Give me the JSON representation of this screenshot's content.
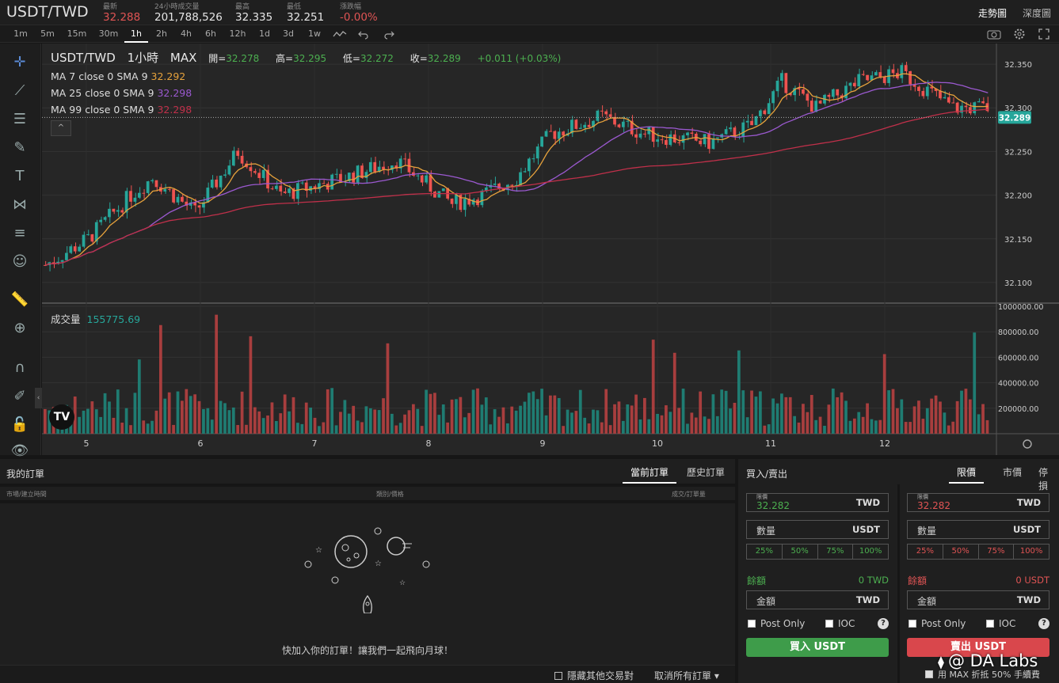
{
  "header": {
    "pair": "USDT/TWD",
    "stats": [
      {
        "label": "最新",
        "value": "32.288",
        "color": "red"
      },
      {
        "label": "24小時成交量",
        "value": "201,788,526",
        "color": ""
      },
      {
        "label": "最高",
        "value": "32.335",
        "color": ""
      },
      {
        "label": "最低",
        "value": "32.251",
        "color": ""
      },
      {
        "label": "漲跌幅",
        "value": "-0.00%",
        "color": "red"
      }
    ],
    "view_tabs": [
      "走勢圖",
      "深度圖"
    ],
    "active_view": "走勢圖"
  },
  "intervals": [
    "1m",
    "5m",
    "15m",
    "30m",
    "1h",
    "2h",
    "4h",
    "6h",
    "12h",
    "1d",
    "3d",
    "1w"
  ],
  "active_interval": "1h",
  "legend": {
    "symbol": "USDT/TWD",
    "interval": "1小時",
    "exchange": "MAX",
    "open_label": "開=",
    "open": "32.278",
    "high_label": "高=",
    "high": "32.295",
    "low_label": "低=",
    "low": "32.272",
    "close_label": "收=",
    "close": "32.289",
    "change": "+0.011 (+0.03%)",
    "ma": [
      {
        "label": "MA 7 close 0 SMA 9",
        "value": "32.292",
        "color": "#e6a23c"
      },
      {
        "label": "MA 25 close 0 SMA 9",
        "value": "32.298",
        "color": "#9b59d0"
      },
      {
        "label": "MA 99 close 0 SMA 9",
        "value": "32.298",
        "color": "#c0304a"
      }
    ],
    "volume_label": "成交量",
    "volume_value": "155775.69"
  },
  "chart_data": {
    "type": "candlestick",
    "price_axis": {
      "ticks": [
        "32.350",
        "32.300",
        "32.250",
        "32.200",
        "32.150",
        "32.100"
      ],
      "range": [
        32.08,
        32.37
      ]
    },
    "volume_axis": {
      "ticks": [
        "1000000.00",
        "800000.00",
        "600000.00",
        "400000.00",
        "200000.00"
      ],
      "range": [
        0,
        1000000
      ]
    },
    "x_ticks": [
      "5",
      "6",
      "7",
      "8",
      "9",
      "10",
      "11",
      "12"
    ],
    "last_price": "32.289",
    "colors": {
      "up": "#26a69a",
      "down": "#ef5350",
      "ma7": "#e6a23c",
      "ma25": "#9b59d0",
      "ma99": "#c0304a"
    }
  },
  "orders": {
    "title": "我的訂單",
    "tabs": [
      "當前訂單",
      "歷史訂單"
    ],
    "columns": [
      "市場/建立時間",
      "類別/價格",
      "成交/訂單量"
    ],
    "empty_text": "快加入你的訂單！讓我們一起飛向月球！",
    "hide_others": "隱藏其他交易對",
    "cancel_all": "取消所有訂單"
  },
  "trade": {
    "title": "買入/賣出",
    "tabs": [
      "限價",
      "市價",
      "停損"
    ],
    "buy": {
      "price_label": "限價",
      "price": "32.282",
      "price_unit": "TWD",
      "qty_label": "數量",
      "qty_unit": "USDT",
      "pcts": [
        "25%",
        "50%",
        "75%",
        "100%"
      ],
      "balance_label": "餘額",
      "balance": "0 TWD",
      "amount_label": "金額",
      "amount_unit": "TWD",
      "post_only": "Post Only",
      "ioc": "IOC",
      "button": "買入 USDT"
    },
    "sell": {
      "price_label": "限價",
      "price": "32.282",
      "price_unit": "TWD",
      "qty_label": "數量",
      "qty_unit": "USDT",
      "pcts": [
        "25%",
        "50%",
        "75%",
        "100%"
      ],
      "balance_label": "餘額",
      "balance": "0 USDT",
      "amount_label": "金額",
      "amount_unit": "TWD",
      "post_only": "Post Only",
      "ioc": "IOC",
      "button": "賣出 USDT"
    },
    "fee_note": "用 MAX 折抵 50% 手續費",
    "watermark": "@ DA Labs"
  }
}
